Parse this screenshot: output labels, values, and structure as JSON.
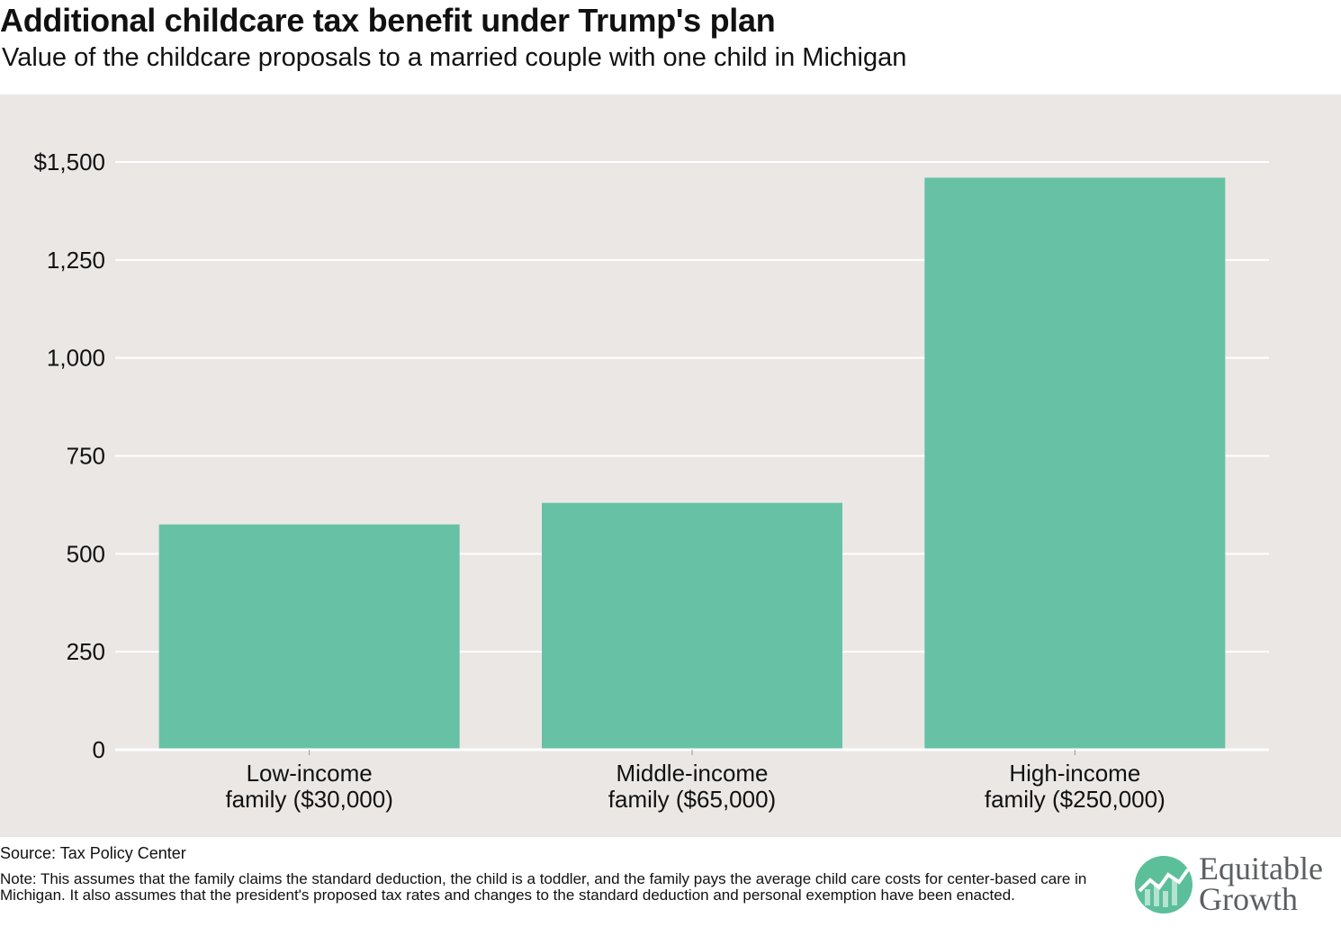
{
  "header": {
    "title": "Additional childcare tax benefit under Trump's plan",
    "subtitle": "Value of the childcare proposals to a married couple with one child in Michigan"
  },
  "footer": {
    "source": "Source: Tax Policy Center",
    "note": "Note: This assumes that the family claims the standard deduction, the child is a toddler, and the family pays the average child care costs for center-based care in Michigan. It also assumes that the president's proposed tax rates and changes to the standard deduction and personal exemption have been enacted."
  },
  "logo": {
    "line1": "Equitable",
    "line2": "Growth",
    "icon": "rising-line-chart-icon"
  },
  "colors": {
    "bar": "#67c2a5",
    "background": "#ebe7e5",
    "logo_green": "#5bbf9a",
    "logo_text": "#5a5f62"
  },
  "chart_data": {
    "type": "bar",
    "title": "Additional childcare tax benefit under Trump's plan",
    "subtitle": "Value of the childcare proposals to a married couple with one child in Michigan",
    "categories": [
      [
        "Low-income",
        "family ($30,000)"
      ],
      [
        "Middle-income",
        "family ($65,000)"
      ],
      [
        "High-income",
        "family ($250,000)"
      ]
    ],
    "values": [
      575,
      630,
      1460
    ],
    "ylim": [
      0,
      1500
    ],
    "yticks": [
      0,
      250,
      500,
      750,
      1000,
      1250,
      1500
    ],
    "ytick_labels": [
      "0",
      "250",
      "500",
      "750",
      "1,000",
      "1,250",
      "$1,500"
    ],
    "xlabel": "",
    "ylabel": "",
    "grid": "horizontal",
    "legend": "none"
  }
}
